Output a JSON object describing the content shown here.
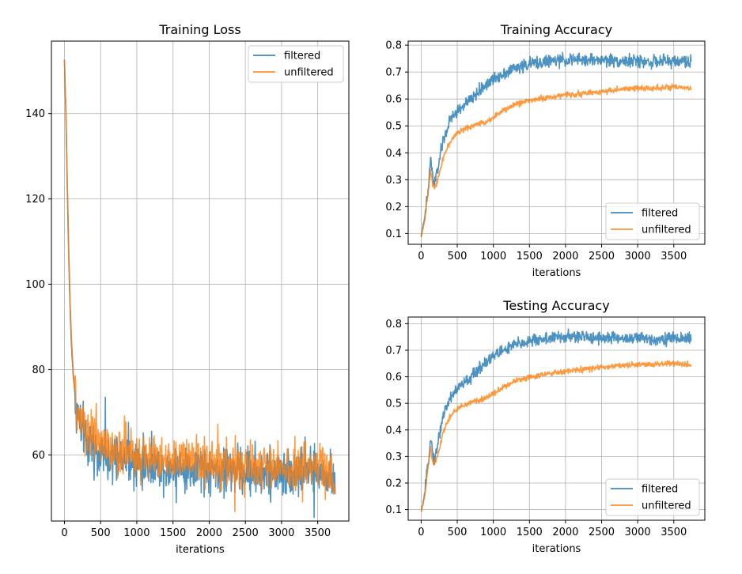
{
  "chart_data": [
    {
      "id": "training-loss",
      "type": "line",
      "title": "Training Loss",
      "xlabel": "iterations",
      "ylabel": "",
      "xlim": [
        -180,
        3930
      ],
      "ylim": [
        44.5,
        157
      ],
      "xticks": [
        0,
        500,
        1000,
        1500,
        2000,
        2500,
        3000,
        3500
      ],
      "yticks": [
        60,
        80,
        100,
        120,
        140
      ],
      "grid": true,
      "legend": "top-right",
      "series": [
        {
          "name": "filtered",
          "color": "#1f77b4",
          "x": [
            0,
            20,
            40,
            60,
            80,
            100,
            120,
            150,
            200,
            250,
            300,
            400,
            500,
            700,
            1000,
            1250,
            1500,
            1750,
            2000,
            2250,
            2500,
            2750,
            3000,
            3250,
            3500,
            3700,
            3740
          ],
          "y": [
            152.5,
            140,
            122,
            106,
            93,
            85,
            79,
            73,
            68,
            65.5,
            63.5,
            61.5,
            60,
            59,
            58,
            57.5,
            57,
            56.8,
            56.5,
            56.3,
            56,
            56,
            55.8,
            55.8,
            55.6,
            55.5,
            52
          ]
        },
        {
          "name": "unfiltered",
          "color": "#ff7f0e",
          "x": [
            0,
            20,
            40,
            60,
            80,
            100,
            120,
            150,
            200,
            250,
            300,
            400,
            500,
            700,
            1000,
            1250,
            1500,
            1750,
            2000,
            2250,
            2500,
            2750,
            3000,
            3250,
            3500,
            3700,
            3740
          ],
          "y": [
            152.5,
            141,
            124,
            108,
            95,
            86,
            80,
            74,
            69.5,
            67.5,
            66,
            64,
            62.5,
            61,
            60,
            59,
            58.5,
            58,
            57.8,
            57.5,
            57.3,
            57,
            56.8,
            56.6,
            56.5,
            56.4,
            52
          ]
        }
      ]
    },
    {
      "id": "training-accuracy",
      "type": "line",
      "title": "Training Accuracy",
      "xlabel": "iterations",
      "ylabel": "",
      "xlim": [
        -180,
        3930
      ],
      "ylim": [
        0.06,
        0.815
      ],
      "xticks": [
        0,
        500,
        1000,
        1500,
        2000,
        2500,
        3000,
        3500
      ],
      "yticks": [
        0.1,
        0.2,
        0.3,
        0.4,
        0.5,
        0.6,
        0.7,
        0.8
      ],
      "grid": true,
      "legend": "bottom-right",
      "series": [
        {
          "name": "filtered",
          "color": "#1f77b4",
          "x": [
            0,
            50,
            100,
            130,
            170,
            200,
            250,
            300,
            400,
            500,
            700,
            900,
            1100,
            1300,
            1500,
            1750,
            2000,
            2250,
            2500,
            2750,
            3000,
            3250,
            3500,
            3740
          ],
          "y": [
            0.09,
            0.16,
            0.27,
            0.38,
            0.29,
            0.3,
            0.37,
            0.44,
            0.52,
            0.555,
            0.6,
            0.655,
            0.69,
            0.715,
            0.73,
            0.74,
            0.745,
            0.745,
            0.745,
            0.742,
            0.74,
            0.738,
            0.74,
            0.74
          ]
        },
        {
          "name": "unfiltered",
          "color": "#ff7f0e",
          "x": [
            0,
            50,
            100,
            130,
            170,
            200,
            250,
            300,
            400,
            500,
            700,
            900,
            1100,
            1300,
            1500,
            1750,
            2000,
            2250,
            2500,
            2750,
            3000,
            3250,
            3500,
            3740
          ],
          "y": [
            0.09,
            0.15,
            0.26,
            0.33,
            0.27,
            0.28,
            0.32,
            0.38,
            0.44,
            0.475,
            0.5,
            0.515,
            0.55,
            0.58,
            0.595,
            0.605,
            0.615,
            0.62,
            0.628,
            0.635,
            0.64,
            0.642,
            0.643,
            0.638
          ]
        }
      ]
    },
    {
      "id": "testing-accuracy",
      "type": "line",
      "title": "Testing Accuracy",
      "xlabel": "iterations",
      "ylabel": "",
      "xlim": [
        -180,
        3930
      ],
      "ylim": [
        0.06,
        0.825
      ],
      "xticks": [
        0,
        500,
        1000,
        1500,
        2000,
        2500,
        3000,
        3500
      ],
      "yticks": [
        0.1,
        0.2,
        0.3,
        0.4,
        0.5,
        0.6,
        0.7,
        0.8
      ],
      "grid": true,
      "legend": "bottom-right",
      "series": [
        {
          "name": "filtered",
          "color": "#1f77b4",
          "x": [
            0,
            50,
            100,
            130,
            170,
            200,
            250,
            300,
            400,
            500,
            700,
            900,
            1100,
            1300,
            1500,
            1750,
            2000,
            2250,
            2500,
            2750,
            3000,
            3250,
            3500,
            3740
          ],
          "y": [
            0.09,
            0.16,
            0.28,
            0.38,
            0.29,
            0.3,
            0.38,
            0.45,
            0.52,
            0.555,
            0.6,
            0.66,
            0.695,
            0.72,
            0.735,
            0.745,
            0.75,
            0.75,
            0.748,
            0.745,
            0.745,
            0.742,
            0.745,
            0.745
          ]
        },
        {
          "name": "unfiltered",
          "color": "#ff7f0e",
          "x": [
            0,
            50,
            100,
            130,
            170,
            200,
            250,
            300,
            400,
            500,
            700,
            900,
            1100,
            1300,
            1500,
            1750,
            2000,
            2250,
            2500,
            2750,
            3000,
            3250,
            3500,
            3740
          ],
          "y": [
            0.09,
            0.15,
            0.27,
            0.33,
            0.27,
            0.28,
            0.32,
            0.39,
            0.45,
            0.48,
            0.505,
            0.52,
            0.555,
            0.585,
            0.6,
            0.61,
            0.62,
            0.628,
            0.635,
            0.642,
            0.645,
            0.648,
            0.65,
            0.645
          ]
        }
      ]
    }
  ]
}
